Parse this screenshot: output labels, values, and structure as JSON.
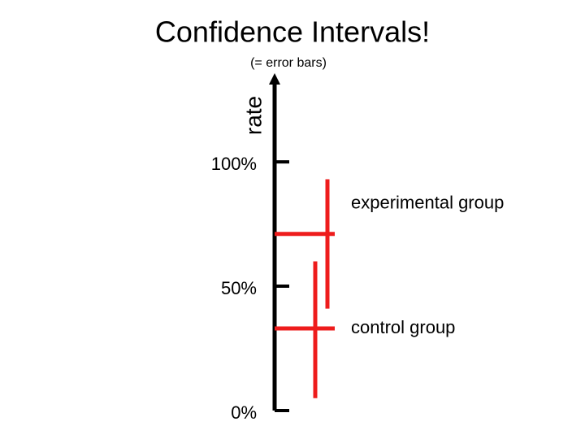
{
  "chart_data": {
    "type": "errorbar",
    "title": "Confidence Intervals!",
    "subtitle": "(= error bars)",
    "y_label": "rate",
    "categories": [
      "experimental group",
      "control group"
    ],
    "values": [
      71,
      33
    ],
    "lower": [
      41,
      5
    ],
    "upper": [
      93,
      60
    ],
    "color": "#ee1c1c",
    "ylim": [
      0,
      135
    ],
    "yticks": [
      {
        "value": 0,
        "label": "0%"
      },
      {
        "value": 50,
        "label": "50%"
      },
      {
        "value": 100,
        "label": "100%"
      }
    ]
  }
}
